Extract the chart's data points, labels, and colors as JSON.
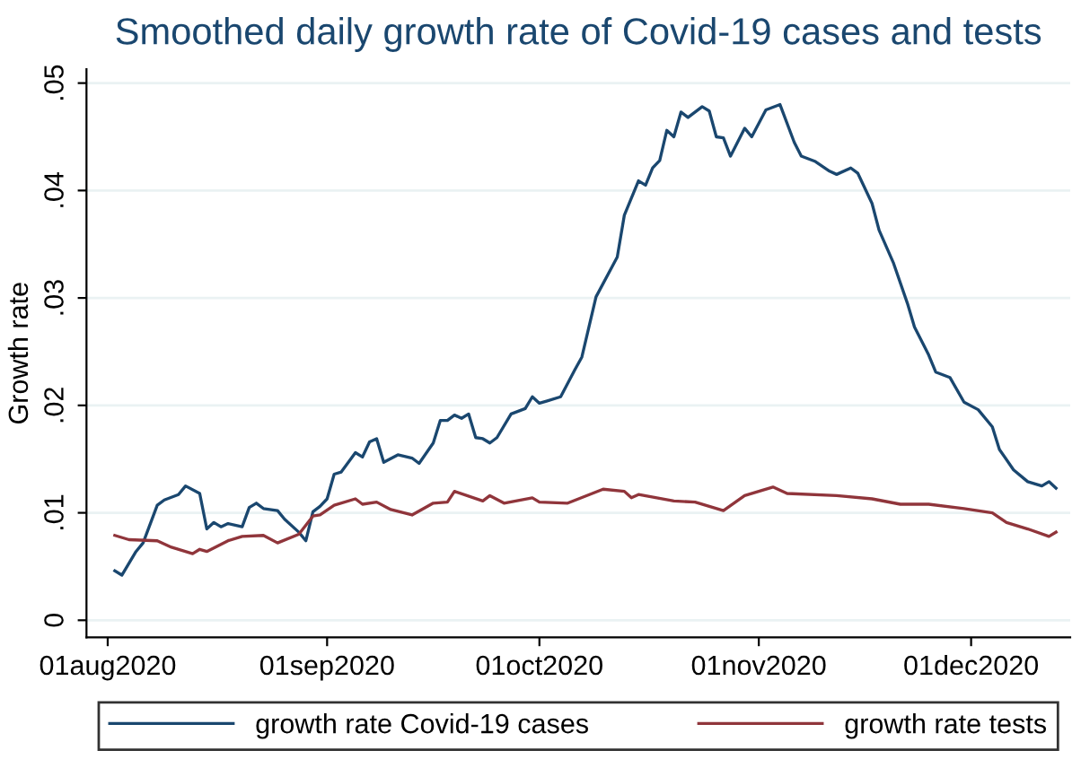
{
  "chart_data": {
    "type": "line",
    "title": "Smoothed daily growth rate of Covid-19 cases and tests",
    "ylabel": "Growth rate",
    "xlim": [
      "2020-07-29",
      "2020-12-15"
    ],
    "ylim": [
      -0.0016,
      0.0513
    ],
    "xticks": [
      {
        "value": "2020-08-01",
        "label": "01aug2020"
      },
      {
        "value": "2020-09-01",
        "label": "01sep2020"
      },
      {
        "value": "2020-10-01",
        "label": "01oct2020"
      },
      {
        "value": "2020-11-01",
        "label": "01nov2020"
      },
      {
        "value": "2020-12-01",
        "label": "01dec2020"
      }
    ],
    "yticks": [
      0,
      {
        "value": 0.01,
        "label": ".01"
      },
      {
        "value": 0.02,
        "label": ".02"
      },
      {
        "value": 0.03,
        "label": ".03"
      },
      {
        "value": 0.04,
        "label": ".04"
      },
      {
        "value": 0.05,
        "label": ".05"
      }
    ],
    "grid": "y",
    "legend": "bottom",
    "line_style": "solid",
    "series": [
      {
        "name": "growth rate Covid-19 cases",
        "color": "#1a476f",
        "x": [
          "2020-08-02",
          "2020-08-03",
          "2020-08-04",
          "2020-08-05",
          "2020-08-06",
          "2020-08-08",
          "2020-08-09",
          "2020-08-11",
          "2020-08-12",
          "2020-08-14",
          "2020-08-15",
          "2020-08-16",
          "2020-08-17",
          "2020-08-18",
          "2020-08-20",
          "2020-08-21",
          "2020-08-22",
          "2020-08-23",
          "2020-08-25",
          "2020-08-26",
          "2020-08-28",
          "2020-08-29",
          "2020-08-30",
          "2020-08-31",
          "2020-09-01",
          "2020-09-02",
          "2020-09-03",
          "2020-09-05",
          "2020-09-06",
          "2020-09-07",
          "2020-09-08",
          "2020-09-09",
          "2020-09-11",
          "2020-09-13",
          "2020-09-14",
          "2020-09-16",
          "2020-09-17",
          "2020-09-18",
          "2020-09-19",
          "2020-09-20",
          "2020-09-21",
          "2020-09-22",
          "2020-09-23",
          "2020-09-24",
          "2020-09-25",
          "2020-09-27",
          "2020-09-29",
          "2020-09-30",
          "2020-10-01",
          "2020-10-02",
          "2020-10-04",
          "2020-10-06",
          "2020-10-07",
          "2020-10-08",
          "2020-10-09",
          "2020-10-12",
          "2020-10-13",
          "2020-10-15",
          "2020-10-16",
          "2020-10-17",
          "2020-10-18",
          "2020-10-19",
          "2020-10-20",
          "2020-10-21",
          "2020-10-22",
          "2020-10-24",
          "2020-10-25",
          "2020-10-26",
          "2020-10-27",
          "2020-10-28",
          "2020-10-30",
          "2020-10-31",
          "2020-11-02",
          "2020-11-04",
          "2020-11-06",
          "2020-11-07",
          "2020-11-09",
          "2020-11-11",
          "2020-11-12",
          "2020-11-14",
          "2020-11-15",
          "2020-11-17",
          "2020-11-18",
          "2020-11-20",
          "2020-11-22",
          "2020-11-23",
          "2020-11-25",
          "2020-11-26",
          "2020-11-28",
          "2020-11-30",
          "2020-12-02",
          "2020-12-04",
          "2020-12-05",
          "2020-12-07",
          "2020-12-09",
          "2020-12-11",
          "2020-12-12",
          "2020-12-13"
        ],
        "values": [
          0.0046,
          0.0042,
          0.0053,
          0.0064,
          0.0072,
          0.0107,
          0.0112,
          0.0117,
          0.0125,
          0.0118,
          0.0085,
          0.0091,
          0.0087,
          0.009,
          0.0087,
          0.0105,
          0.0109,
          0.0104,
          0.0102,
          0.0094,
          0.0082,
          0.0074,
          0.0101,
          0.0106,
          0.0113,
          0.0136,
          0.0138,
          0.0156,
          0.0152,
          0.0166,
          0.0169,
          0.0147,
          0.0154,
          0.0151,
          0.0146,
          0.0165,
          0.0186,
          0.0186,
          0.0191,
          0.0188,
          0.0192,
          0.017,
          0.0169,
          0.0165,
          0.017,
          0.0192,
          0.0197,
          0.0208,
          0.0202,
          0.0204,
          0.0208,
          0.0233,
          0.0245,
          0.0273,
          0.0301,
          0.0338,
          0.0377,
          0.0409,
          0.0405,
          0.0421,
          0.0428,
          0.0456,
          0.045,
          0.0473,
          0.0468,
          0.0478,
          0.0474,
          0.045,
          0.0449,
          0.0432,
          0.0458,
          0.045,
          0.0475,
          0.048,
          0.0445,
          0.0432,
          0.0427,
          0.0418,
          0.0415,
          0.0421,
          0.0416,
          0.0388,
          0.0363,
          0.0333,
          0.0295,
          0.0273,
          0.0247,
          0.0231,
          0.0226,
          0.0203,
          0.0196,
          0.018,
          0.0159,
          0.014,
          0.0129,
          0.0125,
          0.0129,
          0.0123
        ]
      },
      {
        "name": "growth rate tests",
        "color": "#90353b",
        "x": [
          "2020-08-02",
          "2020-08-04",
          "2020-08-08",
          "2020-08-10",
          "2020-08-13",
          "2020-08-14",
          "2020-08-15",
          "2020-08-18",
          "2020-08-20",
          "2020-08-23",
          "2020-08-25",
          "2020-08-28",
          "2020-08-30",
          "2020-08-31",
          "2020-09-02",
          "2020-09-05",
          "2020-09-06",
          "2020-09-08",
          "2020-09-10",
          "2020-09-13",
          "2020-09-16",
          "2020-09-18",
          "2020-09-19",
          "2020-09-23",
          "2020-09-24",
          "2020-09-26",
          "2020-09-30",
          "2020-10-01",
          "2020-10-05",
          "2020-10-10",
          "2020-10-13",
          "2020-10-14",
          "2020-10-15",
          "2020-10-20",
          "2020-10-23",
          "2020-10-27",
          "2020-10-30",
          "2020-11-03",
          "2020-11-05",
          "2020-11-12",
          "2020-11-17",
          "2020-11-21",
          "2020-11-25",
          "2020-11-30",
          "2020-12-04",
          "2020-12-06",
          "2020-12-09",
          "2020-12-12",
          "2020-12-13"
        ],
        "values": [
          0.0079,
          0.0075,
          0.0074,
          0.0068,
          0.0062,
          0.0066,
          0.0064,
          0.0074,
          0.0078,
          0.0079,
          0.0072,
          0.008,
          0.0097,
          0.0098,
          0.0107,
          0.0113,
          0.0108,
          0.011,
          0.0103,
          0.0098,
          0.0109,
          0.011,
          0.012,
          0.0111,
          0.0116,
          0.0109,
          0.0114,
          0.011,
          0.0109,
          0.0122,
          0.012,
          0.0114,
          0.0117,
          0.0111,
          0.011,
          0.0102,
          0.0116,
          0.0124,
          0.0118,
          0.0116,
          0.0113,
          0.0108,
          0.0108,
          0.0104,
          0.01,
          0.0091,
          0.0085,
          0.0078,
          0.0082
        ]
      }
    ]
  }
}
